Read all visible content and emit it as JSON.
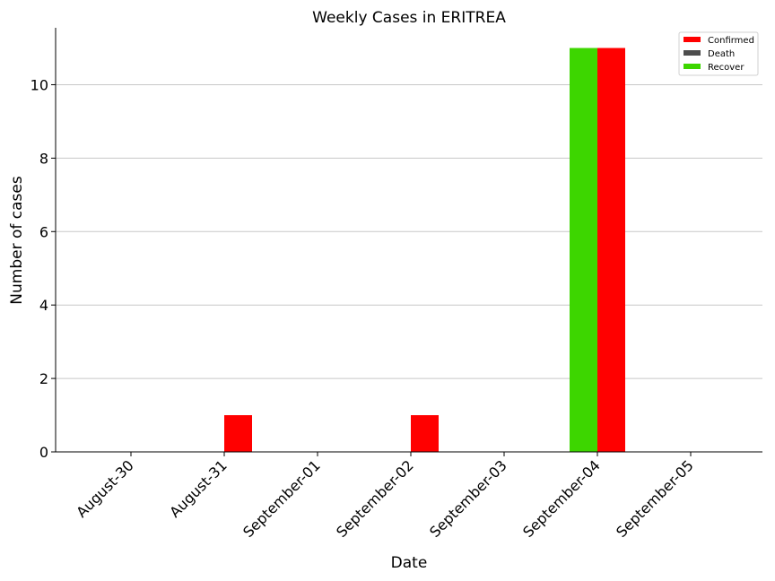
{
  "chart_data": {
    "type": "bar",
    "title": "Weekly Cases in ERITREA",
    "xlabel": "Date",
    "ylabel": "Number of cases",
    "categories": [
      "August-30",
      "August-31",
      "September-01",
      "September-02",
      "September-03",
      "September-04",
      "September-05"
    ],
    "series": [
      {
        "name": "Confirmed",
        "color": "#ff0000",
        "values": [
          0,
          1,
          0,
          1,
          0,
          11,
          0
        ]
      },
      {
        "name": "Death",
        "color": "#4d4d4d",
        "values": [
          0,
          0,
          0,
          0,
          0,
          0,
          0
        ]
      },
      {
        "name": "Recover",
        "color": "#3dd600",
        "values": [
          0,
          0,
          0,
          0,
          0,
          11,
          0
        ]
      }
    ],
    "ylim": [
      0,
      11.55
    ],
    "yticks": [
      0,
      2,
      4,
      6,
      8,
      10
    ],
    "grid": "horizontal",
    "legend_position": "top-right"
  }
}
